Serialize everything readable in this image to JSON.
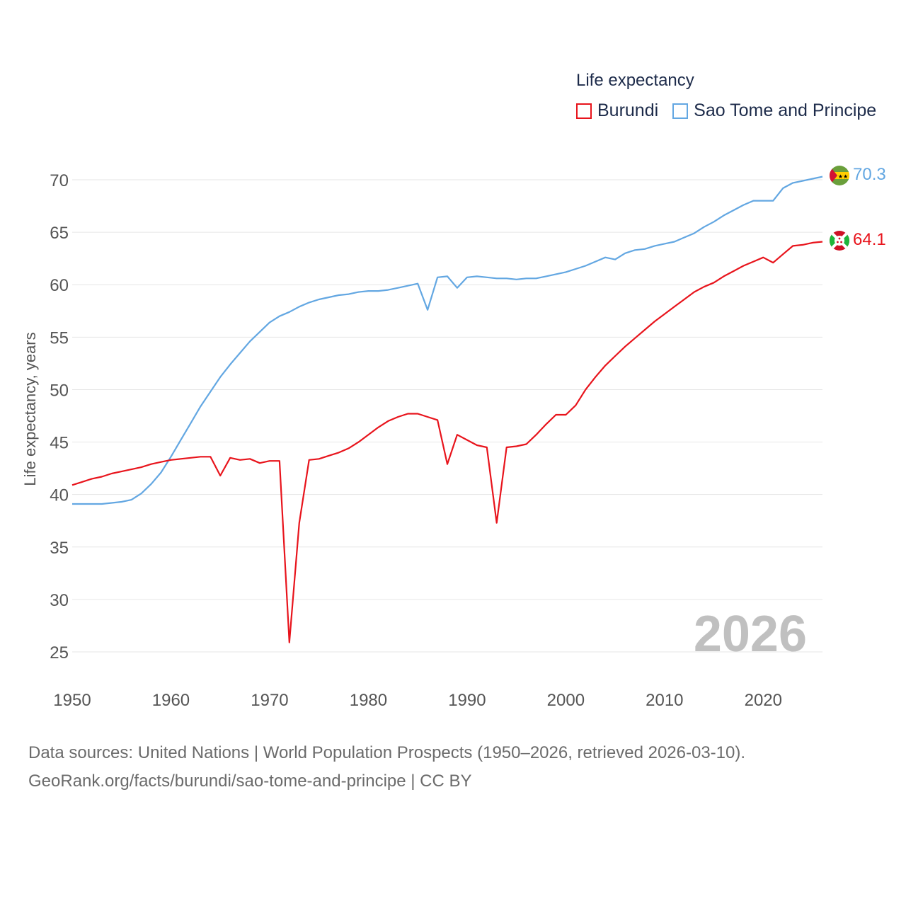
{
  "legend": {
    "title": "Life expectancy",
    "items": [
      {
        "label": "Burundi",
        "color": "#e8141c"
      },
      {
        "label": "Sao Tome and Principe",
        "color": "#63a7e2"
      }
    ]
  },
  "year_label": "2026",
  "footer": {
    "line1": "Data sources: United Nations | World Population Prospects (1950–2026, retrieved 2026-03-10).",
    "line2": "GeoRank.org/facts/burundi/sao-tome-and-principe | CC BY"
  },
  "chart_data": {
    "type": "line",
    "title": "Life expectancy",
    "xlabel": "",
    "ylabel": "Life expectancy, years",
    "xlim": [
      1950,
      2026
    ],
    "ylim": [
      25,
      71
    ],
    "x_ticks": [
      1950,
      1960,
      1970,
      1980,
      1990,
      2000,
      2010,
      2020
    ],
    "y_ticks": [
      25,
      30,
      35,
      40,
      45,
      50,
      55,
      60,
      65,
      70
    ],
    "grid": true,
    "x": [
      1950,
      1951,
      1952,
      1953,
      1954,
      1955,
      1956,
      1957,
      1958,
      1959,
      1960,
      1961,
      1962,
      1963,
      1964,
      1965,
      1966,
      1967,
      1968,
      1969,
      1970,
      1971,
      1972,
      1973,
      1974,
      1975,
      1976,
      1977,
      1978,
      1979,
      1980,
      1981,
      1982,
      1983,
      1984,
      1985,
      1986,
      1987,
      1988,
      1989,
      1990,
      1991,
      1992,
      1993,
      1994,
      1995,
      1996,
      1997,
      1998,
      1999,
      2000,
      2001,
      2002,
      2003,
      2004,
      2005,
      2006,
      2007,
      2008,
      2009,
      2010,
      2011,
      2012,
      2013,
      2014,
      2015,
      2016,
      2017,
      2018,
      2019,
      2020,
      2021,
      2022,
      2023,
      2024,
      2025,
      2026
    ],
    "series": [
      {
        "name": "Burundi",
        "color": "#e8141c",
        "end_value_label": "64.1",
        "flag_icon": "burundi-flag-icon",
        "values": [
          40.9,
          41.2,
          41.5,
          41.7,
          42.0,
          42.2,
          42.4,
          42.6,
          42.9,
          43.1,
          43.3,
          43.4,
          43.5,
          43.6,
          43.6,
          41.8,
          43.5,
          43.3,
          43.4,
          43.0,
          43.2,
          43.2,
          25.9,
          37.3,
          43.3,
          43.4,
          43.7,
          44.0,
          44.4,
          45.0,
          45.7,
          46.4,
          47.0,
          47.4,
          47.7,
          47.7,
          47.4,
          47.1,
          42.9,
          45.7,
          45.2,
          44.7,
          44.5,
          37.3,
          44.5,
          44.6,
          44.8,
          45.7,
          46.7,
          47.6,
          47.6,
          48.5,
          50.0,
          51.2,
          52.3,
          53.2,
          54.1,
          54.9,
          55.7,
          56.5,
          57.2,
          57.9,
          58.6,
          59.3,
          59.8,
          60.2,
          60.8,
          61.3,
          61.8,
          62.2,
          62.6,
          62.1,
          62.9,
          63.7,
          63.8,
          64.0,
          64.1
        ]
      },
      {
        "name": "Sao Tome and Principe",
        "color": "#63a7e2",
        "end_value_label": "70.3",
        "flag_icon": "sao-tome-flag-icon",
        "values": [
          39.1,
          39.1,
          39.1,
          39.1,
          39.2,
          39.3,
          39.5,
          40.1,
          41.0,
          42.1,
          43.6,
          45.2,
          46.8,
          48.4,
          49.8,
          51.2,
          52.4,
          53.5,
          54.6,
          55.5,
          56.4,
          57.0,
          57.4,
          57.9,
          58.3,
          58.6,
          58.8,
          59.0,
          59.1,
          59.3,
          59.4,
          59.4,
          59.5,
          59.7,
          59.9,
          60.1,
          57.6,
          60.7,
          60.8,
          59.7,
          60.7,
          60.8,
          60.7,
          60.6,
          60.6,
          60.5,
          60.6,
          60.6,
          60.8,
          61.0,
          61.2,
          61.5,
          61.8,
          62.2,
          62.6,
          62.4,
          63.0,
          63.3,
          63.4,
          63.7,
          63.9,
          64.1,
          64.5,
          64.9,
          65.5,
          66.0,
          66.6,
          67.1,
          67.6,
          68.0,
          68.0,
          68.0,
          69.2,
          69.7,
          69.9,
          70.1,
          70.3
        ]
      }
    ]
  }
}
